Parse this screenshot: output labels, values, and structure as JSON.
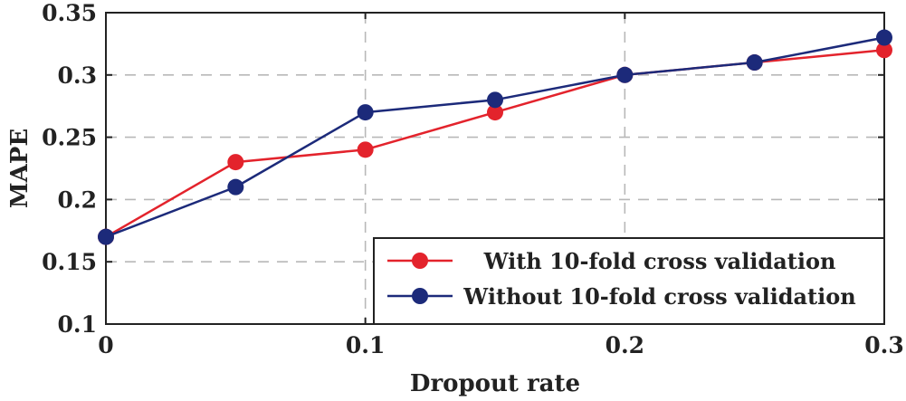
{
  "chart_data": {
    "type": "line",
    "title": "",
    "xlabel": "Dropout rate",
    "ylabel": "MAPE",
    "x": [
      0,
      0.05,
      0.1,
      0.15,
      0.2,
      0.25,
      0.3
    ],
    "xlim": [
      0,
      0.3
    ],
    "ylim": [
      0.1,
      0.35
    ],
    "x_ticks": [
      0,
      0.1,
      0.2,
      0.3
    ],
    "x_tick_labels": [
      "0",
      "0.1",
      "0.2",
      "0.3"
    ],
    "y_ticks": [
      0.1,
      0.15,
      0.2,
      0.25,
      0.3,
      0.35
    ],
    "y_tick_labels": [
      "0.1",
      "0.15",
      "0.2",
      "0.25",
      "0.3",
      "0.35"
    ],
    "grid": true,
    "legend_position": "bottom-right",
    "series": [
      {
        "name": "With 10-fold cross validation",
        "color": "#e3232c",
        "values": [
          0.17,
          0.23,
          0.24,
          0.27,
          0.3,
          0.31,
          0.32
        ]
      },
      {
        "name": "Without 10-fold cross validation",
        "color": "#1c2a7a",
        "values": [
          0.17,
          0.21,
          0.27,
          0.28,
          0.3,
          0.31,
          0.33
        ]
      }
    ]
  }
}
